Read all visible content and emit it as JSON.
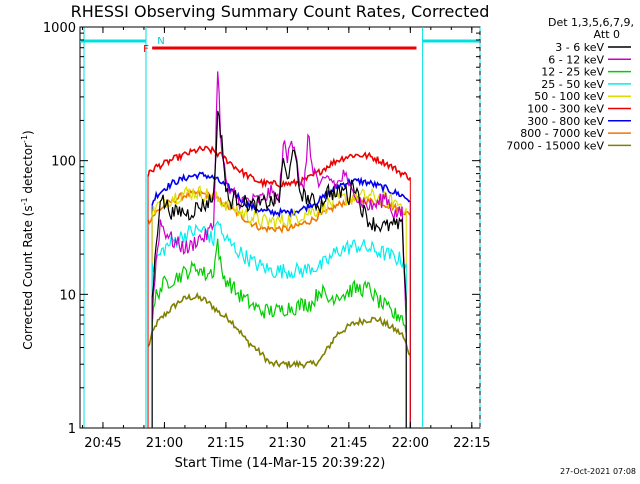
{
  "chart_data": {
    "type": "line",
    "title": "RHESSI Observing Summary Count Rates, Corrected",
    "xlabel": "Start Time (14-Mar-15 20:39:22)",
    "ylabel_main": "Corrected Count Rate (s",
    "ylabel_sup1": "-1",
    "ylabel_mid": " detector",
    "ylabel_sup2": "-1",
    "ylabel_end": ")",
    "yscale": "log",
    "ylim": [
      1,
      1000
    ],
    "xlim_min": [
      39.4,
      137
    ],
    "x_ticks": [
      {
        "t": 45,
        "label": "20:45"
      },
      {
        "t": 60,
        "label": "21:00"
      },
      {
        "t": 75,
        "label": "21:15"
      },
      {
        "t": 90,
        "label": "21:30"
      },
      {
        "t": 105,
        "label": "21:45"
      },
      {
        "t": 120,
        "label": "22:00"
      },
      {
        "t": 135,
        "label": "22:15"
      }
    ],
    "y_ticks": [
      {
        "v": 1,
        "label": "1"
      },
      {
        "v": 10,
        "label": "10"
      },
      {
        "v": 100,
        "label": "100"
      },
      {
        "v": 1000,
        "label": "1000"
      }
    ],
    "legend_header": [
      "Det 1,3,5,6,7,9,",
      "Att 0"
    ],
    "series": [
      {
        "name": "3 - 6 keV",
        "color": "#000000",
        "x": [
          57,
          58,
          59,
          60,
          61,
          62,
          64,
          66,
          68,
          70,
          72,
          73,
          74,
          75,
          76,
          77,
          78,
          80,
          82,
          84,
          86,
          88,
          89,
          90,
          91,
          92,
          93,
          94,
          96,
          98,
          100,
          102,
          104,
          105,
          106,
          107,
          108,
          109,
          110,
          112,
          114,
          116,
          118,
          119
        ],
        "y": [
          9,
          24,
          55,
          48,
          45,
          40,
          42,
          40,
          45,
          47,
          54,
          220,
          150,
          60,
          48,
          53,
          52,
          48,
          46,
          48,
          49,
          52,
          100,
          70,
          115,
          100,
          60,
          55,
          50,
          46,
          60,
          55,
          62,
          52,
          70,
          60,
          45,
          40,
          35,
          33,
          32,
          33,
          32,
          9
        ]
      },
      {
        "name": "6 - 12 keV",
        "color": "#cc00cc",
        "x": [
          57,
          58,
          59,
          60,
          61,
          62,
          64,
          66,
          68,
          70,
          72,
          73,
          74,
          75,
          76,
          77,
          78,
          80,
          82,
          84,
          86,
          88,
          89,
          90,
          91,
          92,
          93,
          94,
          95,
          96,
          98,
          100,
          102,
          104,
          105,
          106,
          107,
          108,
          110,
          112,
          114,
          116,
          118,
          119
        ],
        "y": [
          7,
          18,
          35,
          30,
          28,
          25,
          23,
          22,
          26,
          27,
          33,
          500,
          110,
          75,
          52,
          58,
          50,
          50,
          50,
          52,
          58,
          50,
          140,
          100,
          150,
          125,
          70,
          56,
          155,
          95,
          62,
          75,
          65,
          80,
          60,
          68,
          52,
          50,
          45,
          47,
          55,
          40,
          40,
          6
        ]
      },
      {
        "name": "12 - 25 keV",
        "color": "#00cc00",
        "x": [
          57,
          58,
          60,
          62,
          64,
          66,
          68,
          70,
          72,
          73,
          74,
          75,
          76,
          78,
          80,
          82,
          84,
          86,
          88,
          90,
          92,
          94,
          96,
          98,
          100,
          102,
          104,
          106,
          108,
          110,
          112,
          114,
          116,
          118,
          119
        ],
        "y": [
          6,
          10,
          12,
          13,
          14,
          15,
          16,
          14,
          15,
          25,
          14,
          13,
          12,
          10,
          9,
          8,
          7.5,
          7.5,
          7.5,
          8,
          8,
          8.5,
          8.5,
          11,
          9,
          10,
          10,
          11,
          11,
          11,
          9,
          8,
          7,
          7,
          5
        ]
      },
      {
        "name": "25 - 50 keV",
        "color": "#00eeee",
        "x": [
          57,
          58,
          60,
          62,
          64,
          66,
          68,
          70,
          72,
          73,
          74,
          76,
          78,
          80,
          82,
          84,
          86,
          88,
          90,
          92,
          94,
          96,
          98,
          100,
          102,
          104,
          106,
          108,
          110,
          112,
          114,
          116,
          118,
          119
        ],
        "y": [
          15,
          18,
          22,
          25,
          27,
          29,
          30,
          30,
          25,
          38,
          28,
          24,
          21,
          19,
          17,
          16,
          15,
          15,
          15,
          15,
          15,
          16,
          16,
          18,
          21,
          22,
          23,
          23,
          22,
          21,
          20,
          19,
          18,
          17
        ]
      },
      {
        "name": "50 - 100 keV",
        "color": "#dddd00",
        "x": [
          57,
          58,
          60,
          62,
          64,
          66,
          68,
          70,
          72,
          74,
          76,
          78,
          80,
          82,
          84,
          86,
          88,
          90,
          92,
          94,
          96,
          98,
          100,
          102,
          104,
          106,
          108,
          110,
          112,
          114,
          116,
          118,
          119
        ],
        "y": [
          40,
          45,
          50,
          53,
          56,
          58,
          58,
          56,
          53,
          50,
          46,
          42,
          39,
          37,
          35,
          35,
          35,
          36,
          38,
          40,
          42,
          44,
          47,
          50,
          52,
          53,
          54,
          54,
          53,
          51,
          49,
          47,
          44
        ]
      },
      {
        "name": "100 - 300 keV",
        "color": "#ee0000",
        "x": [
          56,
          57,
          58,
          60,
          62,
          64,
          66,
          68,
          70,
          72,
          74,
          76,
          78,
          80,
          82,
          84,
          86,
          88,
          90,
          92,
          94,
          96,
          98,
          100,
          102,
          104,
          106,
          108,
          110,
          112,
          114,
          116,
          118,
          120
        ],
        "y": [
          78,
          85,
          90,
          95,
          102,
          108,
          114,
          120,
          122,
          118,
          108,
          97,
          86,
          78,
          72,
          68,
          67,
          67,
          67,
          68,
          71,
          76,
          83,
          92,
          100,
          106,
          110,
          110,
          108,
          102,
          96,
          88,
          80,
          75
        ]
      },
      {
        "name": "300 - 800 keV",
        "color": "#0000ee",
        "x": [
          57,
          58,
          60,
          62,
          64,
          66,
          68,
          70,
          72,
          74,
          76,
          78,
          80,
          82,
          84,
          86,
          88,
          90,
          92,
          94,
          96,
          98,
          100,
          102,
          104,
          106,
          108,
          110,
          112,
          114,
          116,
          118,
          120
        ],
        "y": [
          48,
          55,
          62,
          68,
          72,
          76,
          78,
          78,
          74,
          68,
          62,
          54,
          48,
          44,
          42,
          41,
          41,
          41,
          42,
          44,
          47,
          51,
          57,
          64,
          68,
          70,
          70,
          68,
          65,
          62,
          58,
          55,
          50
        ]
      },
      {
        "name": "800 - 7000 keV",
        "color": "#ee7700",
        "x": [
          56,
          57,
          58,
          60,
          62,
          64,
          66,
          68,
          70,
          72,
          74,
          76,
          78,
          80,
          82,
          84,
          86,
          88,
          90,
          92,
          94,
          96,
          98,
          100,
          102,
          104,
          106,
          108,
          110,
          112,
          114,
          116,
          118,
          120
        ],
        "y": [
          35,
          38,
          41,
          46,
          50,
          54,
          56,
          57,
          56,
          53,
          49,
          44,
          40,
          36,
          33,
          31,
          31,
          31,
          31,
          32,
          34,
          36,
          39,
          42,
          46,
          49,
          51,
          51,
          50,
          49,
          47,
          45,
          42,
          39
        ]
      },
      {
        "name": "7000 - 15000 keV",
        "color": "#808000",
        "x": [
          56,
          57,
          58,
          60,
          62,
          64,
          66,
          68,
          70,
          72,
          74,
          76,
          78,
          80,
          82,
          84,
          86,
          88,
          90,
          92,
          94,
          96,
          98,
          100,
          102,
          104,
          106,
          108,
          110,
          112,
          114,
          116,
          118,
          120
        ],
        "y": [
          4,
          5,
          6,
          7,
          8,
          9,
          9.5,
          9.5,
          9,
          8,
          7,
          6.5,
          5.5,
          4.5,
          4,
          3.5,
          3,
          3,
          3,
          3,
          3,
          3,
          3.2,
          4,
          5,
          5.5,
          6,
          6.3,
          6.5,
          6.5,
          6,
          5.5,
          5,
          3.5
        ]
      }
    ],
    "annotations": {
      "flag_f": "F",
      "flag_n": "N",
      "night_top_band": [
        [
          39.4,
          55.5
        ],
        [
          123,
          137
        ]
      ],
      "night_dashed_bounds": [
        55.5,
        57,
        121.5,
        137
      ],
      "flare_interval": [
        57,
        121.5
      ]
    },
    "footer_date": "27-Oct-2021 07:08"
  }
}
